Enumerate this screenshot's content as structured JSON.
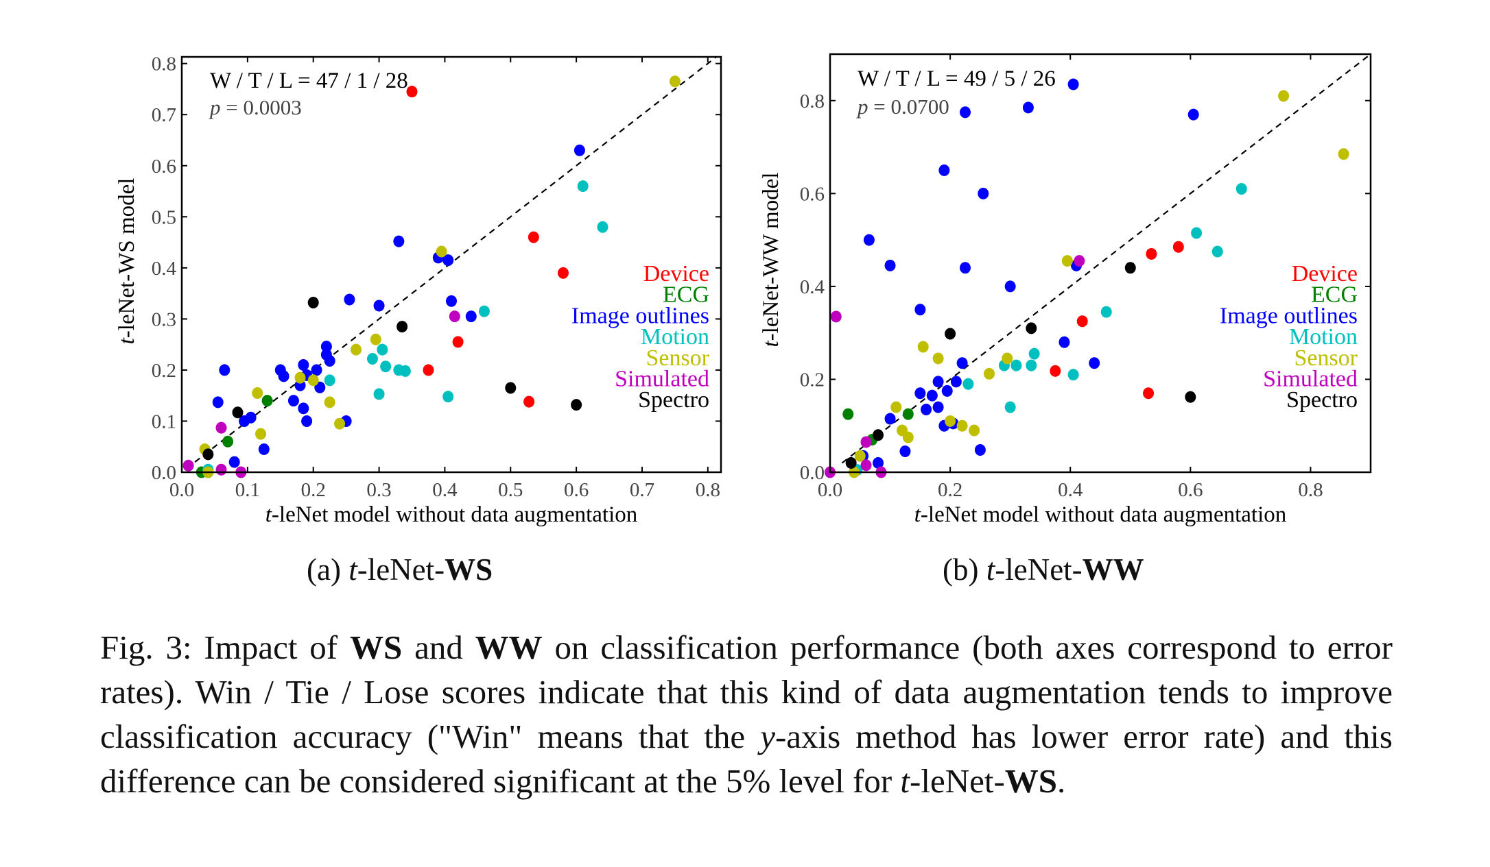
{
  "chart_data": [
    {
      "type": "scatter",
      "panel_label": "(a)",
      "subcaption": {
        "prefix": "(a) ",
        "italic": "t",
        "mid": "-leNet-",
        "bold": "WS"
      },
      "xlabel": "t-leNet model without data augmentation",
      "ylabel": "t-leNet-WS model",
      "xlim": [
        0,
        0.82
      ],
      "ylim": [
        0,
        0.813
      ],
      "xticks": [
        "0.0",
        "0.1",
        "0.2",
        "0.3",
        "0.4",
        "0.5",
        "0.6",
        "0.7",
        "0.8"
      ],
      "yticks": [
        "0.0",
        "0.1",
        "0.2",
        "0.3",
        "0.4",
        "0.5",
        "0.6",
        "0.7",
        "0.8"
      ],
      "diagonal": "dashed y=x",
      "grid": false,
      "legend_position": "right",
      "annotations": [
        "W / T / L = 47 / 1 / 28",
        "p = 0.0003"
      ],
      "series": [
        {
          "name": "Device",
          "color": "#ff0000",
          "points": [
            [
              0.35,
              0.745
            ],
            [
              0.535,
              0.46
            ],
            [
              0.58,
              0.39
            ],
            [
              0.375,
              0.2
            ],
            [
              0.42,
              0.255
            ],
            [
              0.528,
              0.138
            ]
          ]
        },
        {
          "name": "ECG",
          "color": "#008000",
          "points": [
            [
              0.13,
              0.14
            ],
            [
              0.07,
              0.06
            ],
            [
              0.03,
              0.0
            ],
            [
              0.04,
              0.0
            ]
          ]
        },
        {
          "name": "Image outlines",
          "color": "#0000ff",
          "points": [
            [
              0.605,
              0.63
            ],
            [
              0.33,
              0.452
            ],
            [
              0.39,
              0.42
            ],
            [
              0.405,
              0.415
            ],
            [
              0.255,
              0.338
            ],
            [
              0.3,
              0.326
            ],
            [
              0.41,
              0.335
            ],
            [
              0.44,
              0.305
            ],
            [
              0.22,
              0.246
            ],
            [
              0.22,
              0.23
            ],
            [
              0.225,
              0.218
            ],
            [
              0.185,
              0.21
            ],
            [
              0.205,
              0.2
            ],
            [
              0.19,
              0.19
            ],
            [
              0.15,
              0.2
            ],
            [
              0.155,
              0.188
            ],
            [
              0.18,
              0.17
            ],
            [
              0.21,
              0.166
            ],
            [
              0.17,
              0.14
            ],
            [
              0.185,
              0.125
            ],
            [
              0.19,
              0.1
            ],
            [
              0.25,
              0.1
            ],
            [
              0.065,
              0.2
            ],
            [
              0.055,
              0.137
            ],
            [
              0.095,
              0.1
            ],
            [
              0.105,
              0.107
            ],
            [
              0.125,
              0.045
            ],
            [
              0.08,
              0.02
            ]
          ]
        },
        {
          "name": "Motion",
          "color": "#00bfbf",
          "points": [
            [
              0.61,
              0.56
            ],
            [
              0.64,
              0.48
            ],
            [
              0.46,
              0.315
            ],
            [
              0.305,
              0.24
            ],
            [
              0.29,
              0.222
            ],
            [
              0.31,
              0.207
            ],
            [
              0.33,
              0.2
            ],
            [
              0.34,
              0.198
            ],
            [
              0.225,
              0.18
            ],
            [
              0.3,
              0.153
            ],
            [
              0.405,
              0.148
            ],
            [
              0.04,
              0.005
            ]
          ]
        },
        {
          "name": "Sensor",
          "color": "#bfbf00",
          "points": [
            [
              0.75,
              0.765
            ],
            [
              0.395,
              0.432
            ],
            [
              0.295,
              0.26
            ],
            [
              0.265,
              0.24
            ],
            [
              0.18,
              0.185
            ],
            [
              0.2,
              0.18
            ],
            [
              0.115,
              0.155
            ],
            [
              0.225,
              0.137
            ],
            [
              0.24,
              0.095
            ],
            [
              0.12,
              0.075
            ],
            [
              0.035,
              0.045
            ],
            [
              0.04,
              0.0
            ]
          ]
        },
        {
          "name": "Simulated",
          "color": "#bf00bf",
          "points": [
            [
              0.415,
              0.305
            ],
            [
              0.06,
              0.087
            ],
            [
              0.01,
              0.013
            ],
            [
              0.06,
              0.005
            ],
            [
              0.09,
              0.0
            ]
          ]
        },
        {
          "name": "Spectro",
          "color": "#000000",
          "points": [
            [
              0.2,
              0.332
            ],
            [
              0.335,
              0.285
            ],
            [
              0.5,
              0.165
            ],
            [
              0.6,
              0.132
            ],
            [
              0.085,
              0.117
            ],
            [
              0.04,
              0.035
            ]
          ]
        }
      ]
    },
    {
      "type": "scatter",
      "panel_label": "(b)",
      "subcaption": {
        "prefix": "(b) ",
        "italic": "t",
        "mid": "-leNet-",
        "bold": "WW"
      },
      "xlabel": "t-leNet model without data augmentation",
      "ylabel": "t-leNet-WW model",
      "xlim": [
        0,
        0.9
      ],
      "ylim": [
        0,
        0.9
      ],
      "xticks": [
        "0.0",
        "0.2",
        "0.4",
        "0.6",
        "0.8"
      ],
      "yticks": [
        "0.0",
        "0.2",
        "0.4",
        "0.6",
        "0.8"
      ],
      "diagonal": "dashed y=x",
      "grid": false,
      "legend_position": "right",
      "annotations": [
        "W / T / L = 49 / 5 / 26",
        "p = 0.0700"
      ],
      "series": [
        {
          "name": "Device",
          "color": "#ff0000",
          "points": [
            [
              0.535,
              0.47
            ],
            [
              0.58,
              0.485
            ],
            [
              0.42,
              0.325
            ],
            [
              0.375,
              0.218
            ],
            [
              0.53,
              0.17
            ]
          ]
        },
        {
          "name": "ECG",
          "color": "#008000",
          "points": [
            [
              0.03,
              0.125
            ],
            [
              0.13,
              0.125
            ],
            [
              0.07,
              0.07
            ]
          ]
        },
        {
          "name": "Image outlines",
          "color": "#0000ff",
          "points": [
            [
              0.225,
              0.775
            ],
            [
              0.33,
              0.785
            ],
            [
              0.405,
              0.835
            ],
            [
              0.605,
              0.77
            ],
            [
              0.19,
              0.65
            ],
            [
              0.255,
              0.6
            ],
            [
              0.065,
              0.5
            ],
            [
              0.1,
              0.445
            ],
            [
              0.225,
              0.44
            ],
            [
              0.41,
              0.445
            ],
            [
              0.3,
              0.4
            ],
            [
              0.15,
              0.35
            ],
            [
              0.39,
              0.28
            ],
            [
              0.44,
              0.235
            ],
            [
              0.22,
              0.235
            ],
            [
              0.21,
              0.195
            ],
            [
              0.18,
              0.195
            ],
            [
              0.195,
              0.175
            ],
            [
              0.15,
              0.17
            ],
            [
              0.17,
              0.165
            ],
            [
              0.16,
              0.135
            ],
            [
              0.18,
              0.14
            ],
            [
              0.1,
              0.115
            ],
            [
              0.19,
              0.1
            ],
            [
              0.205,
              0.105
            ],
            [
              0.125,
              0.045
            ],
            [
              0.25,
              0.048
            ],
            [
              0.08,
              0.02
            ],
            [
              0.055,
              0.035
            ]
          ]
        },
        {
          "name": "Motion",
          "color": "#00bfbf",
          "points": [
            [
              0.685,
              0.61
            ],
            [
              0.61,
              0.515
            ],
            [
              0.645,
              0.475
            ],
            [
              0.46,
              0.345
            ],
            [
              0.34,
              0.255
            ],
            [
              0.29,
              0.23
            ],
            [
              0.31,
              0.23
            ],
            [
              0.335,
              0.23
            ],
            [
              0.23,
              0.19
            ],
            [
              0.405,
              0.21
            ],
            [
              0.3,
              0.14
            ],
            [
              0.045,
              0.005
            ]
          ]
        },
        {
          "name": "Sensor",
          "color": "#bfbf00",
          "points": [
            [
              0.755,
              0.81
            ],
            [
              0.855,
              0.685
            ],
            [
              0.395,
              0.455
            ],
            [
              0.155,
              0.27
            ],
            [
              0.18,
              0.245
            ],
            [
              0.295,
              0.245
            ],
            [
              0.265,
              0.212
            ],
            [
              0.11,
              0.14
            ],
            [
              0.2,
              0.11
            ],
            [
              0.12,
              0.09
            ],
            [
              0.13,
              0.075
            ],
            [
              0.22,
              0.1
            ],
            [
              0.24,
              0.09
            ],
            [
              0.05,
              0.035
            ],
            [
              0.04,
              0.0
            ]
          ]
        },
        {
          "name": "Simulated",
          "color": "#bf00bf",
          "points": [
            [
              0.01,
              0.335
            ],
            [
              0.415,
              0.455
            ],
            [
              0.06,
              0.065
            ],
            [
              0.06,
              0.015
            ],
            [
              0.085,
              0.0
            ],
            [
              0.0,
              0.0
            ]
          ]
        },
        {
          "name": "Spectro",
          "color": "#000000",
          "points": [
            [
              0.2,
              0.298
            ],
            [
              0.335,
              0.31
            ],
            [
              0.5,
              0.44
            ],
            [
              0.6,
              0.162
            ],
            [
              0.08,
              0.08
            ],
            [
              0.035,
              0.02
            ]
          ]
        }
      ]
    }
  ],
  "caption": [
    {
      "t": "Fig. 3: Impact of "
    },
    {
      "t": "WS",
      "b": true
    },
    {
      "t": " and "
    },
    {
      "t": "WW",
      "b": true
    },
    {
      "t": " on classification performance (both axes correspond to error rates). Win / Tie / Lose scores indicate that this kind of data augmentation tends to improve classification accuracy (\"Win\" means that the "
    },
    {
      "t": "y",
      "i": true
    },
    {
      "t": "-axis method has lower error rate) and this difference can be considered significant at the 5% level for "
    },
    {
      "t": "t",
      "i": true
    },
    {
      "t": "-leNet-"
    },
    {
      "t": "WS",
      "b": true
    },
    {
      "t": "."
    }
  ]
}
